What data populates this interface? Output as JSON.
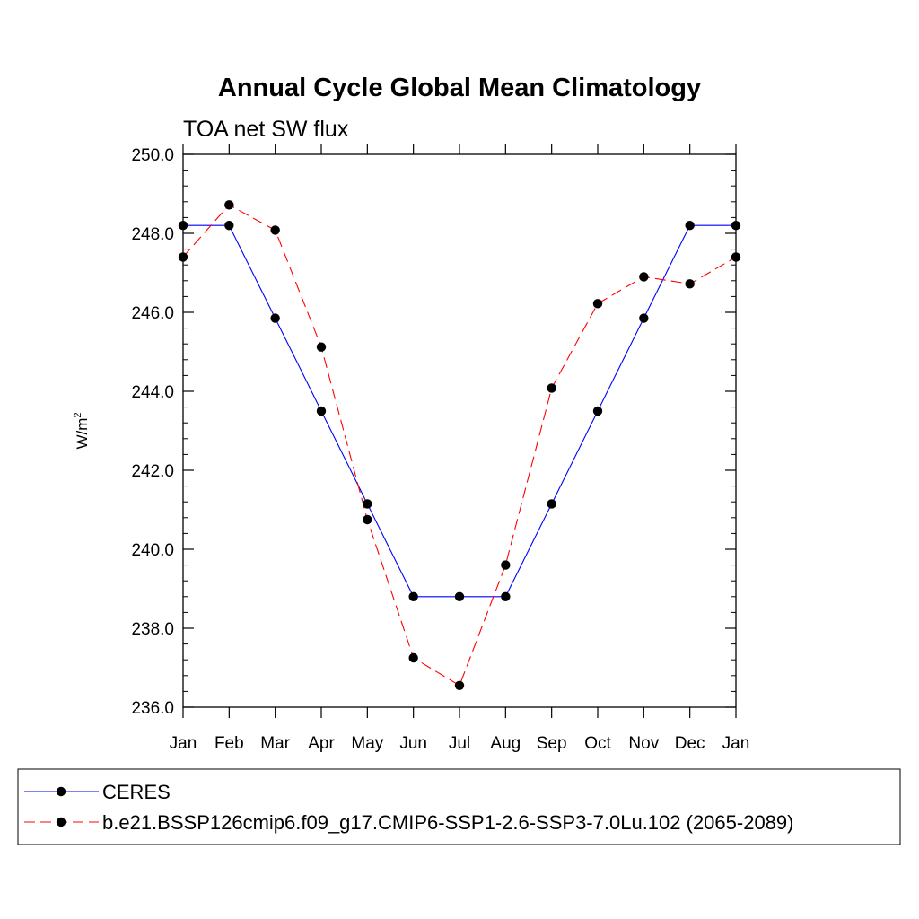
{
  "chart_data": {
    "type": "line",
    "title": "Annual Cycle Global Mean Climatology",
    "subtitle": "TOA net SW flux",
    "xlabel": "",
    "ylabel": "W/m",
    "ylabel_superscript": "2",
    "categories": [
      "Jan",
      "Feb",
      "Mar",
      "Apr",
      "May",
      "Jun",
      "Jul",
      "Aug",
      "Sep",
      "Oct",
      "Nov",
      "Dec",
      "Jan"
    ],
    "ylim": [
      236.0,
      250.0
    ],
    "yticks": [
      "236.0",
      "238.0",
      "240.0",
      "242.0",
      "244.0",
      "246.0",
      "248.0",
      "250.0"
    ],
    "grid": false,
    "legend_position": "bottom",
    "series": [
      {
        "name": "CERES",
        "color": "#0000ff",
        "line_style": "solid",
        "marker": "circle",
        "values": [
          248.2,
          248.2,
          245.85,
          243.5,
          241.15,
          238.8,
          238.8,
          238.8,
          241.15,
          243.5,
          245.85,
          248.2,
          248.2
        ]
      },
      {
        "name": "b.e21.BSSP126cmip6.f09_g17.CMIP6-SSP1-2.6-SSP3-7.0Lu.102 (2065-2089)",
        "color": "#ff0000",
        "line_style": "dashed",
        "marker": "circle",
        "values": [
          247.4,
          248.72,
          248.08,
          245.12,
          240.75,
          237.25,
          236.55,
          239.6,
          244.08,
          246.22,
          246.9,
          246.72,
          247.4
        ]
      }
    ]
  }
}
